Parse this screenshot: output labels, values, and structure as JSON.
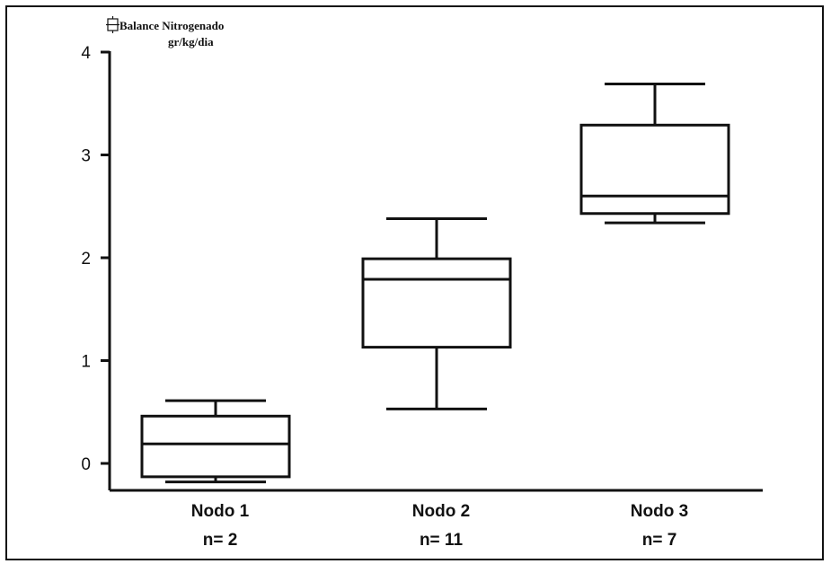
{
  "chart_data": {
    "type": "box",
    "ylabel_line1": "Balance  Nitrogenado",
    "ylabel_line2": "gr/kg/dia",
    "ylim": [
      -0.28,
      4
    ],
    "yticks": [
      0,
      1,
      2,
      3,
      4
    ],
    "categories": [
      {
        "name": "Nodo 1",
        "n_label": "n= 2",
        "whisker_low": -0.18,
        "q1": -0.13,
        "median": 0.19,
        "q3": 0.46,
        "whisker_high": 0.61
      },
      {
        "name": "Nodo 2",
        "n_label": "n= 11",
        "whisker_low": 0.53,
        "q1": 1.13,
        "median": 1.79,
        "q3": 1.99,
        "whisker_high": 2.38
      },
      {
        "name": "Nodo 3",
        "n_label": "n= 7",
        "whisker_low": 2.34,
        "q1": 2.43,
        "median": 2.6,
        "q3": 3.29,
        "whisker_high": 3.69
      }
    ]
  }
}
